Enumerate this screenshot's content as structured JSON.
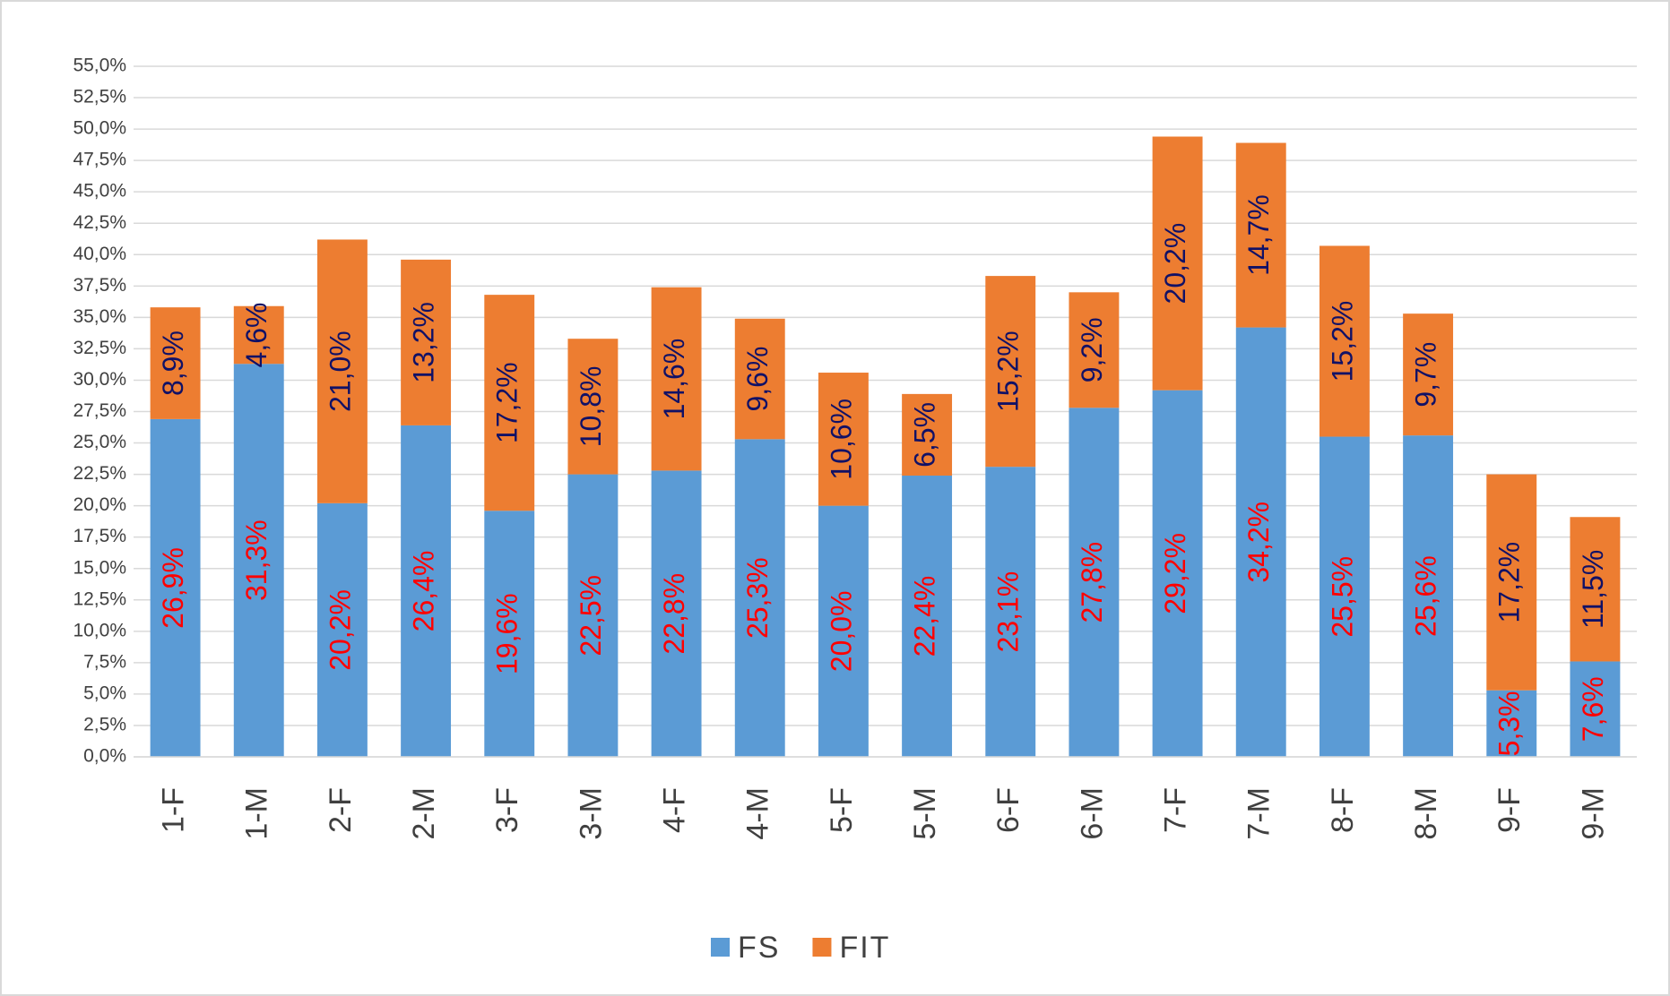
{
  "chart_data": {
    "type": "stacked_bar",
    "categories": [
      "1-F",
      "1-M",
      "2-F",
      "2-M",
      "3-F",
      "3-M",
      "4-F",
      "4-M",
      "5-F",
      "5-M",
      "6-F",
      "6-M",
      "7-F",
      "7-M",
      "8-F",
      "8-M",
      "9-F",
      "9-M"
    ],
    "series": [
      {
        "name": "FS",
        "color": "#5b9bd5",
        "label_color": "#ff0000",
        "values": [
          26.9,
          31.3,
          20.2,
          26.4,
          19.6,
          22.5,
          22.8,
          25.3,
          20.0,
          22.4,
          23.1,
          27.8,
          29.2,
          34.2,
          25.5,
          25.6,
          5.3,
          7.6
        ],
        "value_labels": [
          "26,9%",
          "31,3%",
          "20,2%",
          "26,4%",
          "19,6%",
          "22,5%",
          "22,8%",
          "25,3%",
          "20,0%",
          "22,4%",
          "23,1%",
          "27,8%",
          "29,2%",
          "34,2%",
          "25,5%",
          "25,6%",
          "5,3%",
          "7,6%"
        ]
      },
      {
        "name": "FIT",
        "color": "#ed7d31",
        "label_color": "#111166",
        "values": [
          8.9,
          4.6,
          21.0,
          13.2,
          17.2,
          10.8,
          14.6,
          9.6,
          10.6,
          6.5,
          15.2,
          9.2,
          20.2,
          14.7,
          15.2,
          9.7,
          17.2,
          11.5
        ],
        "value_labels": [
          "8,9%",
          "4,6%",
          "21,0%",
          "13,2%",
          "17,2%",
          "10,8%",
          "14,6%",
          "9,6%",
          "10,6%",
          "6,5%",
          "15,2%",
          "9,2%",
          "20,2%",
          "14,7%",
          "15,2%",
          "9,7%",
          "17,2%",
          "11,5%"
        ]
      }
    ],
    "ylim": [
      0,
      55
    ],
    "yticks": [
      {
        "value": 0,
        "label": "0,0%"
      },
      {
        "value": 2.5,
        "label": "2,5%"
      },
      {
        "value": 5,
        "label": "5,0%"
      },
      {
        "value": 7.5,
        "label": "7,5%"
      },
      {
        "value": 10,
        "label": "10,0%"
      },
      {
        "value": 12.5,
        "label": "12,5%"
      },
      {
        "value": 15,
        "label": "15,0%"
      },
      {
        "value": 17.5,
        "label": "17,5%"
      },
      {
        "value": 20,
        "label": "20,0%"
      },
      {
        "value": 22.5,
        "label": "22,5%"
      },
      {
        "value": 25,
        "label": "25,0%"
      },
      {
        "value": 27.5,
        "label": "27,5%"
      },
      {
        "value": 30,
        "label": "30,0%"
      },
      {
        "value": 32.5,
        "label": "32,5%"
      },
      {
        "value": 35,
        "label": "35,0%"
      },
      {
        "value": 37.5,
        "label": "37,5%"
      },
      {
        "value": 40,
        "label": "40,0%"
      },
      {
        "value": 42.5,
        "label": "42,5%"
      },
      {
        "value": 45,
        "label": "45,0%"
      },
      {
        "value": 47.5,
        "label": "47,5%"
      },
      {
        "value": 50,
        "label": "50,0%"
      },
      {
        "value": 52.5,
        "label": "52,5%"
      },
      {
        "value": 55,
        "label": "55,0%"
      }
    ],
    "grid": true,
    "legend": "bottom"
  }
}
